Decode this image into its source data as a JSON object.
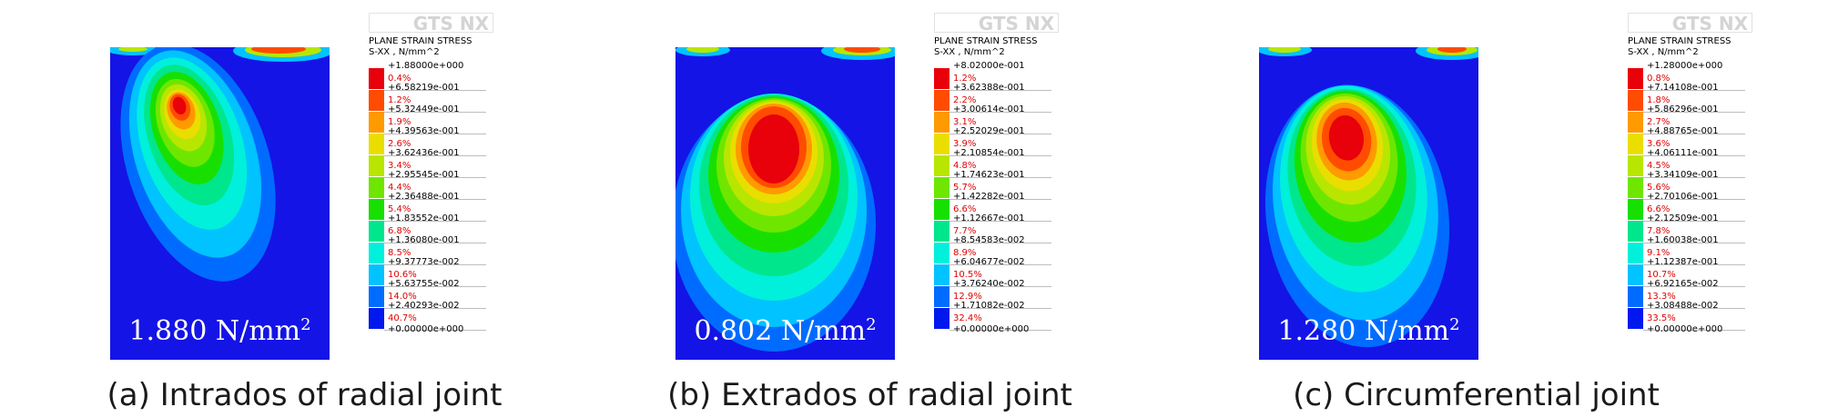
{
  "legend_header": [
    "PLANE STRAIN STRESS",
    "S-XX , N/mm^2"
  ],
  "logo": "GTS NX",
  "panels": [
    {
      "caption": "(a) Intrados of radial joint",
      "peak_value": "1.880 N/mm",
      "peak_exp": "2",
      "values": [
        "+1.88000e+000",
        "+6.58219e-001",
        "+5.32449e-001",
        "+4.39563e-001",
        "+3.62436e-001",
        "+2.95545e-001",
        "+2.36488e-001",
        "+1.83552e-001",
        "+1.36080e-001",
        "+9.37773e-002",
        "+5.63755e-002",
        "+2.40293e-002",
        "+0.00000e+000"
      ],
      "percents": [
        "0.4%",
        "1.2%",
        "1.9%",
        "2.6%",
        "3.4%",
        "4.4%",
        "5.4%",
        "6.8%",
        "8.5%",
        "10.6%",
        "14.0%",
        "40.7%"
      ]
    },
    {
      "caption": "(b) Extrados of radial joint",
      "peak_value": "0.802 N/mm",
      "peak_exp": "2",
      "values": [
        "+8.02000e-001",
        "+3.62388e-001",
        "+3.00614e-001",
        "+2.52029e-001",
        "+2.10854e-001",
        "+1.74623e-001",
        "+1.42282e-001",
        "+1.12667e-001",
        "+8.54583e-002",
        "+6.04677e-002",
        "+3.76240e-002",
        "+1.71082e-002",
        "+0.00000e+000"
      ],
      "percents": [
        "1.2%",
        "2.2%",
        "3.1%",
        "3.9%",
        "4.8%",
        "5.7%",
        "6.6%",
        "7.7%",
        "8.9%",
        "10.5%",
        "12.9%",
        "32.4%"
      ]
    },
    {
      "caption": "(c) Circumferential joint",
      "peak_value": "1.280 N/mm",
      "peak_exp": "2",
      "values": [
        "+1.28000e+000",
        "+7.14108e-001",
        "+5.86296e-001",
        "+4.88765e-001",
        "+4.06111e-001",
        "+3.34109e-001",
        "+2.70106e-001",
        "+2.12509e-001",
        "+1.60038e-001",
        "+1.12387e-001",
        "+6.92165e-002",
        "+3.08488e-002",
        "+0.00000e+000"
      ],
      "percents": [
        "0.8%",
        "1.8%",
        "2.7%",
        "3.6%",
        "4.5%",
        "5.6%",
        "6.6%",
        "7.8%",
        "9.1%",
        "10.7%",
        "13.3%",
        "33.5%"
      ]
    }
  ],
  "colors": {
    "scale": [
      "#e8000a",
      "#ff4c00",
      "#ff9a00",
      "#e9de00",
      "#b8e600",
      "#6ee600",
      "#17e000",
      "#00e68c",
      "#00f0dc",
      "#00c3ff",
      "#006cff",
      "#0018ee"
    ],
    "background": "#1414e6"
  }
}
